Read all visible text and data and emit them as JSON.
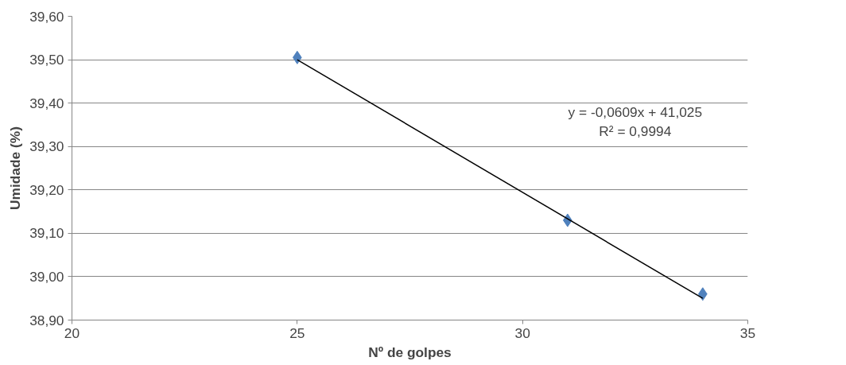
{
  "chart_data": {
    "type": "scatter",
    "xlabel": "Nº de golpes",
    "ylabel": "Umidade (%)",
    "x": [
      25,
      31,
      34
    ],
    "series": [
      {
        "color": "#4f81bd",
        "marker": "diamond",
        "values": [
          39.505,
          39.13,
          38.96
        ]
      },
      {
        "type": "line",
        "color": "#000000",
        "x": [
          25,
          34
        ],
        "values": [
          39.5,
          38.95
        ]
      }
    ],
    "annotations": [
      "y = -0,0609x + 41,025",
      "R² = 0,9994"
    ],
    "xlim": [
      20,
      35
    ],
    "xticks": [
      20,
      25,
      30,
      35
    ],
    "ylim": [
      38.9,
      39.6
    ],
    "yticks": [
      {
        "value": 38.9,
        "label": "38,90"
      },
      {
        "value": 39.0,
        "label": "39,00"
      },
      {
        "value": 39.1,
        "label": "39,10"
      },
      {
        "value": 39.2,
        "label": "39,20"
      },
      {
        "value": 39.3,
        "label": "39,30"
      },
      {
        "value": 39.4,
        "label": "39,40"
      },
      {
        "value": 39.5,
        "label": "39,50"
      },
      {
        "value": 39.6,
        "label": "39,60"
      }
    ],
    "grid": "y"
  }
}
